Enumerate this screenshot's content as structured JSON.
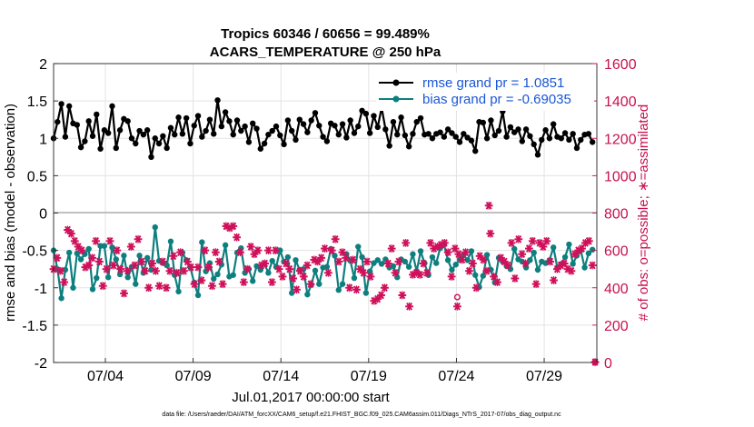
{
  "chart_data": {
    "type": "line",
    "title": "Tropics 60346 / 60656 = 99.489%",
    "subtitle": "ACARS_TEMPERATURE @ 250 hPa",
    "xlabel": "Jul.01,2017 00:00:00 start",
    "ylabel": "rmse and bias (model - observation)",
    "ylabel_right": "# of obs: o=possible; ∗=assimilated",
    "x_tick_labels": [
      "07/04",
      "07/09",
      "07/14",
      "07/19",
      "07/24",
      "07/29"
    ],
    "x_tick_days": [
      4,
      9,
      14,
      19,
      24,
      29
    ],
    "xlim": [
      1.05,
      32.0
    ],
    "ylim": [
      -2,
      2
    ],
    "y_ticks": [
      "2",
      "1.5",
      "1",
      "0.5",
      "0",
      "-0.5",
      "-1",
      "-1.5",
      "-2"
    ],
    "ylim_right": [
      0,
      1600
    ],
    "y_ticks_right": [
      "1600",
      "1400",
      "1200",
      "1000",
      "800",
      "600",
      "400",
      "200",
      "0"
    ],
    "legend": {
      "position": "top-right",
      "entries": [
        "rmse grand pr = 1.0851",
        "bias grand pr = -0.69035"
      ]
    },
    "footnote": "data file: /Users/raeder/DAI/ATM_forcXX/CAM6_setup/f.e21.FHIST_BGC.f09_025.CAM6assim.011/Diags_NTrS_2017-07/obs_diag_output.nc",
    "colors": {
      "rmse": "#000000",
      "bias": "#0e7f7f",
      "obs": "#d0105a",
      "right_axis": "#c8104f",
      "legend_text": "#1a56d6",
      "zero_line": "#b0b0b0"
    },
    "series": [
      {
        "name": "rmse",
        "values": [
          1.0,
          1.22,
          1.46,
          1.02,
          1.43,
          1.2,
          1.18,
          0.88,
          0.96,
          1.23,
          1.03,
          1.32,
          0.86,
          1.11,
          1.07,
          1.43,
          0.87,
          1.11,
          1.26,
          1.23,
          1.0,
          0.93,
          1.1,
          1.05,
          1.11,
          0.75,
          1.0,
          0.93,
          1.03,
          0.87,
          1.14,
          1.05,
          1.28,
          1.06,
          1.27,
          0.93,
          1.17,
          1.3,
          1.02,
          1.1,
          1.25,
          1.06,
          1.51,
          1.16,
          1.35,
          1.23,
          1.05,
          1.24,
          1.1,
          1.16,
          0.95,
          1.2,
          1.13,
          0.86,
          0.93,
          1.05,
          1.1,
          1.16,
          1.04,
          0.92,
          1.24,
          1.1,
          0.98,
          1.25,
          1.19,
          1.08,
          1.24,
          1.34,
          1.17,
          1.02,
          0.96,
          1.2,
          1.17,
          1.05,
          1.19,
          1.01,
          1.24,
          1.07,
          1.16,
          1.37,
          1.33,
          1.07,
          1.3,
          1.15,
          1.41,
          1.12,
          0.9,
          1.22,
          1.05,
          1.28,
          1.04,
          0.89,
          1.06,
          1.22,
          1.27,
          1.05,
          1.06,
          1.0,
          1.06,
          1.08,
          1.02,
          1.12,
          1.07,
          1.02,
          0.95,
          1.06,
          1.01,
          0.97,
          0.83,
          1.22,
          1.21,
          1.0,
          1.24,
          1.04,
          1.1,
          1.36,
          1.02,
          1.15,
          1.08,
          1.12,
          0.96,
          1.12,
          1.03,
          0.92,
          0.78,
          0.98,
          1.11,
          1.0,
          1.19,
          1.02,
          1.0,
          1.07,
          0.98,
          1.06,
          0.87,
          0.98,
          1.05,
          1.06,
          0.95
        ]
      },
      {
        "name": "bias",
        "values": [
          -0.5,
          -0.75,
          -1.14,
          -0.76,
          -0.53,
          -1.0,
          -0.54,
          -0.62,
          -0.55,
          -0.48,
          -1.02,
          -0.87,
          -0.44,
          -0.44,
          -0.86,
          -0.46,
          -0.62,
          -0.82,
          -0.57,
          -0.86,
          -0.72,
          -0.95,
          -0.57,
          -0.8,
          -0.6,
          -0.76,
          -0.19,
          -0.64,
          -0.67,
          -0.7,
          -0.38,
          -0.83,
          -1.05,
          -0.53,
          -0.63,
          -0.72,
          -0.93,
          -1.1,
          -0.39,
          -0.78,
          -0.67,
          -0.88,
          -0.82,
          -0.69,
          -0.43,
          -0.85,
          -0.83,
          -0.53,
          -0.47,
          -0.8,
          -0.75,
          -0.91,
          -0.71,
          -0.76,
          -0.68,
          -0.8,
          -0.64,
          -0.72,
          -0.5,
          -0.65,
          -0.59,
          -1.07,
          -0.63,
          -0.76,
          -0.75,
          -1.09,
          -0.96,
          -0.77,
          -0.95,
          -0.73,
          -0.72,
          -0.48,
          -0.57,
          -1.03,
          -0.95,
          -0.55,
          -0.64,
          -0.87,
          -0.45,
          -0.59,
          -1.07,
          -0.78,
          -0.67,
          -0.63,
          -0.68,
          -0.62,
          -0.73,
          -0.71,
          -0.86,
          -0.62,
          -0.65,
          -0.72,
          -0.55,
          -0.78,
          -0.51,
          -0.67,
          -0.83,
          -0.59,
          -0.67,
          -0.47,
          -0.42,
          -0.63,
          -0.76,
          -0.69,
          -0.62,
          -0.56,
          -0.63,
          -0.51,
          -0.83,
          -0.99,
          -0.84,
          -0.56,
          -0.76,
          -0.93,
          -0.6,
          -0.65,
          -0.71,
          -0.75,
          -0.48,
          -0.62,
          -0.65,
          -0.73,
          -0.63,
          -0.53,
          -0.76,
          -0.65,
          -0.67,
          -0.63,
          -0.46,
          -0.73,
          -0.68,
          -0.59,
          -0.42,
          -0.68,
          -0.57,
          -0.5,
          -0.73,
          -0.54,
          -0.49
        ]
      },
      {
        "name": "obs",
        "values": [
          500,
          560,
          490,
          430,
          710,
          690,
          650,
          620,
          600,
          510,
          520,
          560,
          650,
          540,
          410,
          500,
          650,
          520,
          600,
          500,
          370,
          490,
          620,
          520,
          660,
          540,
          490,
          400,
          530,
          490,
          410,
          540,
          400,
          490,
          570,
          480,
          590,
          490,
          540,
          510,
          420,
          510,
          440,
          600,
          510,
          410,
          590,
          540,
          420,
          730,
          720,
          730,
          670,
          590,
          430,
          500,
          620,
          580,
          600,
          520,
          530,
          600,
          430,
          600,
          500,
          460,
          530,
          500,
          450,
          390,
          490,
          460,
          520,
          420,
          550,
          540,
          560,
          610,
          480,
          600,
          660,
          540,
          590,
          560,
          400,
          550,
          390,
          500,
          480,
          540,
          460,
          330,
          340,
          360,
          400,
          530,
          610,
          480,
          540,
          360,
          640,
          300,
          470,
          480,
          470,
          530,
          480,
          640,
          610,
          620,
          630,
          640,
          590,
          460,
          610,
          580,
          550,
          590,
          490,
          530,
          400,
          570,
          550,
          490,
          690,
          460,
          430,
          560,
          540,
          520,
          640,
          450,
          660,
          580,
          530,
          610,
          650,
          420,
          640,
          620,
          650,
          540,
          440,
          500,
          520,
          530,
          500,
          490,
          580,
          600,
          610,
          640,
          650,
          520
        ]
      }
    ],
    "obs_extra": {
      "outliers_assimilated": [
        840,
        520,
        500,
        2,
        300
      ],
      "outliers_possible": [
        350,
        2
      ]
    }
  }
}
